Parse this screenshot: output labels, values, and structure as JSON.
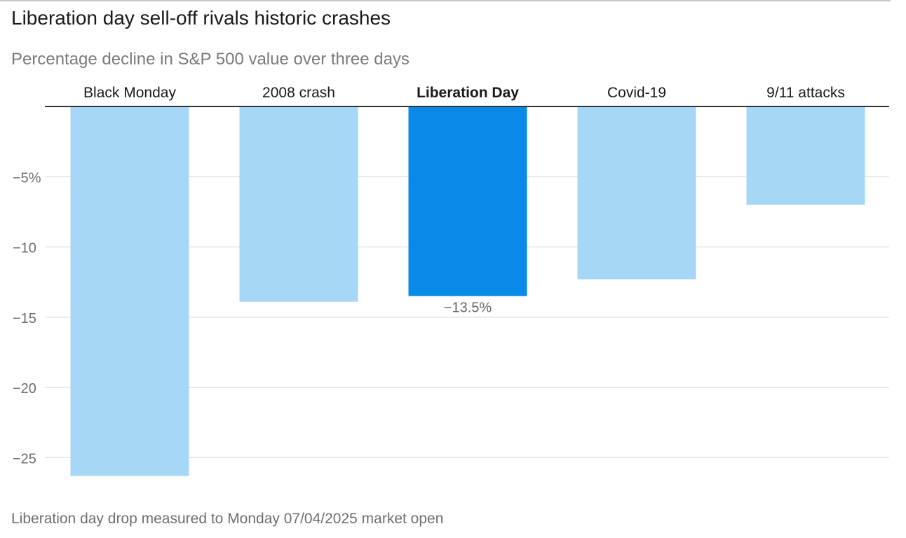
{
  "header": {
    "title": "Liberation day sell-off rivals historic crashes",
    "subtitle": "Percentage decline in S&P 500 value over three days"
  },
  "footnote": "Liberation day drop measured to Monday 07/04/2025 market open",
  "chart_data": {
    "type": "bar",
    "categories": [
      "Black Monday",
      "2008 crash",
      "Liberation Day",
      "Covid-19",
      "9/11 attacks"
    ],
    "values": [
      -26.3,
      -13.9,
      -13.5,
      -12.3,
      -7.0
    ],
    "highlight": "Liberation Day",
    "data_labels": {
      "Liberation Day": "−13.5%"
    },
    "y_ticks": [
      -5,
      -10,
      -15,
      -20,
      -25
    ],
    "y_tick_labels": [
      "−5%",
      "−10",
      "−15",
      "−20",
      "−25"
    ],
    "ylim": [
      -27,
      0
    ],
    "grid": true,
    "colors": {
      "bar": "#a7d7f7",
      "highlight_bar": "#0a8ae8",
      "axis": "#333333",
      "grid": "#dddddd",
      "tick_label": "#6f6f6f",
      "category_label": "#1a1a1a",
      "data_label": "#666666"
    }
  }
}
